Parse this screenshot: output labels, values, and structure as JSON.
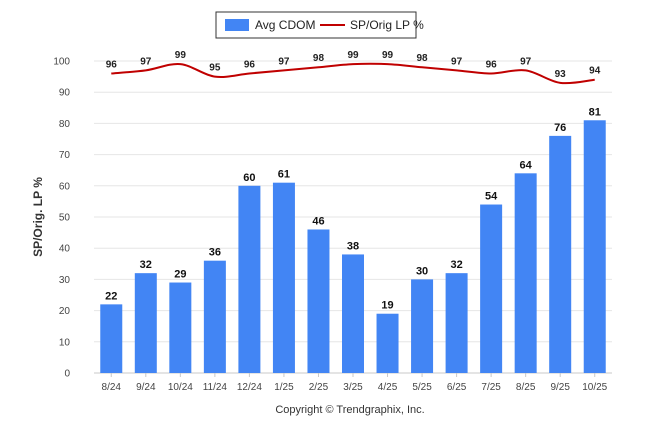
{
  "chart_data": {
    "type": "bar",
    "title": "",
    "xlabel": "",
    "ylabel": "SP/Orig. LP %",
    "ylim": [
      0,
      100
    ],
    "yticks": [
      0,
      10,
      20,
      30,
      40,
      50,
      60,
      70,
      80,
      90,
      100
    ],
    "grid": true,
    "legend_position": "top-center",
    "categories": [
      "8/24",
      "9/24",
      "10/24",
      "11/24",
      "12/24",
      "1/25",
      "2/25",
      "3/25",
      "4/25",
      "5/25",
      "6/25",
      "7/25",
      "8/25",
      "9/25",
      "10/25"
    ],
    "series": [
      {
        "name": "Avg CDOM",
        "type": "bar",
        "color": "#4285f4",
        "values": [
          22,
          32,
          29,
          36,
          60,
          61,
          46,
          38,
          19,
          30,
          32,
          54,
          64,
          76,
          81
        ]
      },
      {
        "name": "SP/Orig LP %",
        "type": "line",
        "color": "#c00000",
        "values": [
          96,
          97,
          99,
          95,
          96,
          97,
          98,
          99,
          99,
          98,
          97,
          96,
          97,
          93,
          94
        ]
      }
    ]
  },
  "footer": {
    "copyright": "Copyright © Trendgraphix, Inc."
  }
}
